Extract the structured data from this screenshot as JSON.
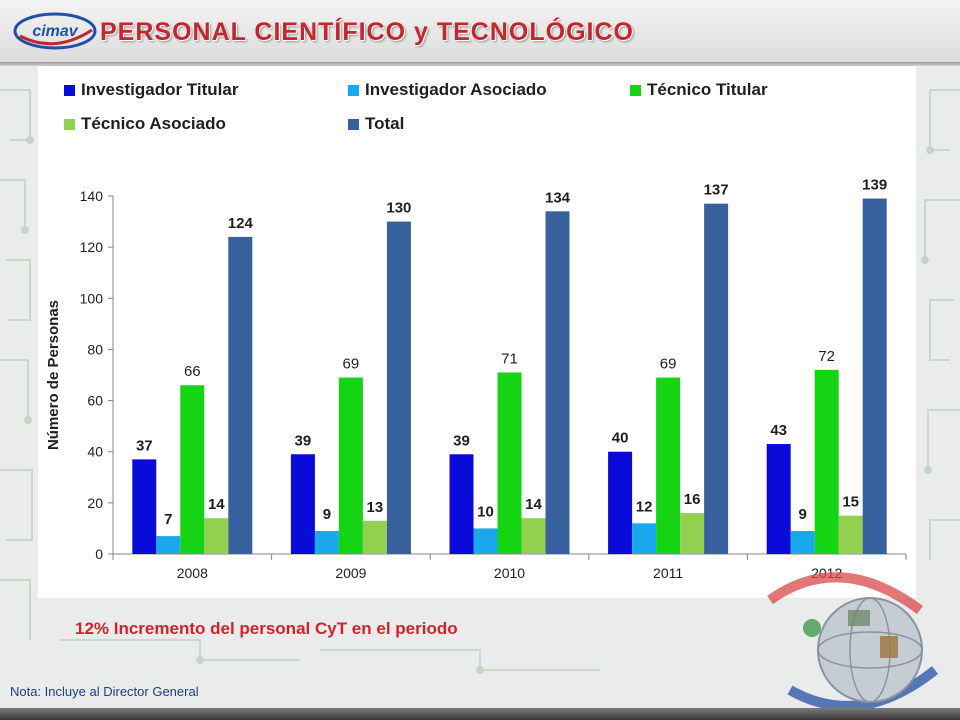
{
  "header": {
    "title": "PERSONAL  CIENTÍFICO  y TECNOLÓGICO",
    "logo_text": "cimav"
  },
  "chart_data": {
    "type": "bar",
    "title": "",
    "xlabel": "",
    "ylabel": "Número de Personas",
    "ylim": [
      0,
      140
    ],
    "yticks": [
      0,
      20,
      40,
      60,
      80,
      100,
      120,
      140
    ],
    "grid": false,
    "legend_position": "top",
    "categories": [
      "2008",
      "2009",
      "2010",
      "2011",
      "2012"
    ],
    "series": [
      {
        "name": "Investigador Titular",
        "color": "#0b0bd9",
        "values": [
          37,
          39,
          39,
          40,
          43
        ]
      },
      {
        "name": "Investigador Asociado",
        "color": "#1aa7ec",
        "values": [
          7,
          9,
          10,
          12,
          9
        ]
      },
      {
        "name": "Técnico Titular",
        "color": "#14d414",
        "values": [
          66,
          69,
          71,
          69,
          72
        ]
      },
      {
        "name": "Técnico Asociado",
        "color": "#92d050",
        "values": [
          14,
          13,
          14,
          16,
          15
        ]
      },
      {
        "name": "Total",
        "color": "#36619c",
        "values": [
          124,
          130,
          134,
          137,
          139
        ]
      }
    ]
  },
  "notes": {
    "increase": "12% Incremento del personal CyT en el periodo",
    "footnote": "Nota:  Incluye al Director General"
  }
}
